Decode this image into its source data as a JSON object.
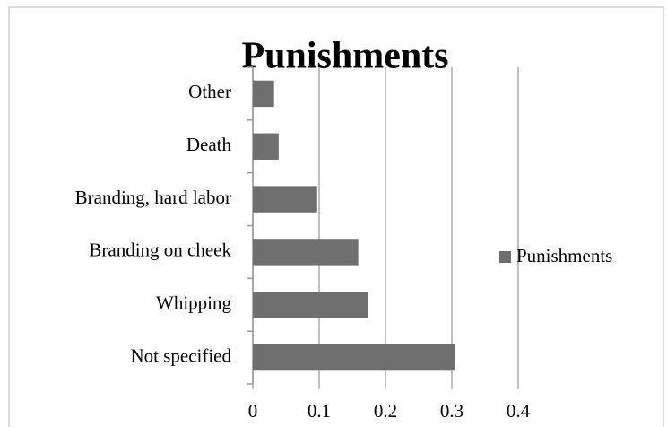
{
  "chart_data": {
    "type": "barh",
    "title": "Punishments",
    "categories": [
      "Not specified",
      "Whipping",
      "Branding on cheek",
      "Branding, hard labor",
      "Death",
      "Other"
    ],
    "series": [
      {
        "name": "Punishments",
        "color": "#6f6f6f",
        "values": [
          0.305,
          0.173,
          0.159,
          0.097,
          0.039,
          0.032
        ]
      }
    ],
    "xlim": [
      0,
      0.4
    ],
    "xticks": [
      0,
      0.1,
      0.2,
      0.3,
      0.4
    ],
    "grid": true,
    "legend": "right"
  }
}
